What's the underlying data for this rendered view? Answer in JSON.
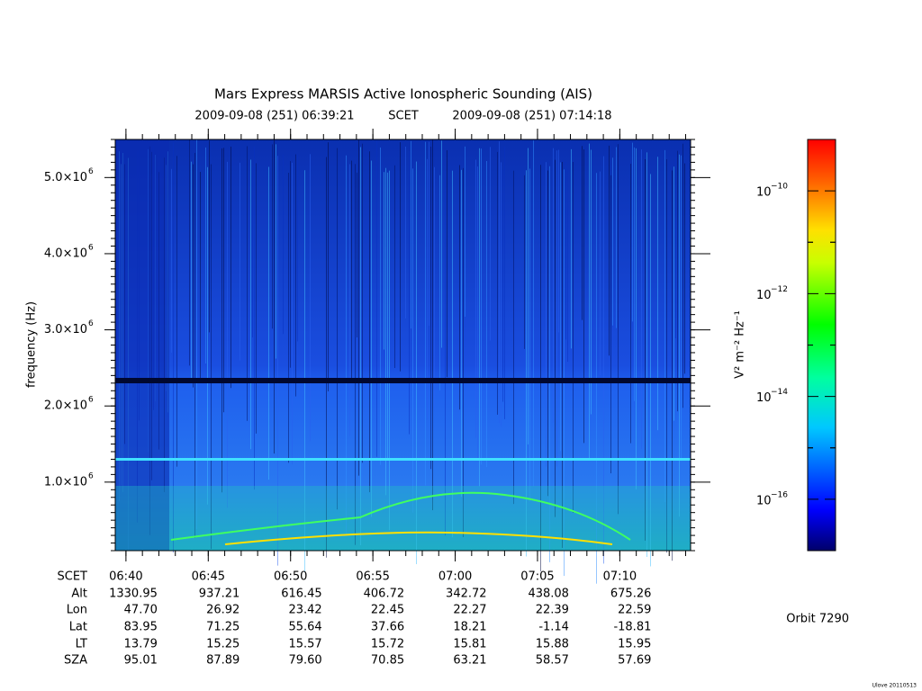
{
  "chart_data": {
    "type": "spectrogram",
    "title": "Mars Express MARSIS Active Ionospheric Sounding (AIS)",
    "time_range": {
      "start": "2009-09-08 (251) 06:39:21",
      "label": "SCET",
      "end": "2009-09-08 (251) 07:14:18"
    },
    "y_label": "frequency (Hz)",
    "ylim": [
      100000,
      5500000
    ],
    "yticks": [
      {
        "value": 1000000,
        "mantissa": "1.0×10",
        "exponent": "6"
      },
      {
        "value": 2000000,
        "mantissa": "2.0×10",
        "exponent": "6"
      },
      {
        "value": 3000000,
        "mantissa": "3.0×10",
        "exponent": "6"
      },
      {
        "value": 4000000,
        "mantissa": "4.0×10",
        "exponent": "6"
      },
      {
        "value": 5000000,
        "mantissa": "5.0×10",
        "exponent": "6"
      }
    ],
    "colorbar": {
      "label": "V² m⁻² Hz⁻¹",
      "log_scale": true,
      "lim": [
        1e-17,
        1e-09
      ],
      "ticks": [
        {
          "value": 1e-10,
          "base": "10",
          "exponent": "−10"
        },
        {
          "value": 1e-12,
          "base": "10",
          "exponent": "−12"
        },
        {
          "value": 1e-14,
          "base": "10",
          "exponent": "−14"
        },
        {
          "value": 1e-16,
          "base": "10",
          "exponent": "−16"
        }
      ]
    },
    "ephemeris": {
      "rows": [
        {
          "label": "SCET",
          "values": [
            "06:40",
            "06:45",
            "06:50",
            "06:55",
            "07:00",
            "07:05",
            "07:10"
          ]
        },
        {
          "label": "Alt",
          "values": [
            "1330.95",
            "937.21",
            "616.45",
            "406.72",
            "342.72",
            "438.08",
            "675.26"
          ]
        },
        {
          "label": "Lon",
          "values": [
            "47.70",
            "26.92",
            "23.42",
            "22.45",
            "22.27",
            "22.39",
            "22.59"
          ]
        },
        {
          "label": "Lat",
          "values": [
            "83.95",
            "71.25",
            "55.64",
            "37.66",
            "18.21",
            "-1.14",
            "-18.81"
          ]
        },
        {
          "label": "LT",
          "values": [
            "13.79",
            "15.25",
            "15.57",
            "15.72",
            "15.81",
            "15.88",
            "15.95"
          ]
        },
        {
          "label": "SZA",
          "values": [
            "95.01",
            "87.89",
            "79.60",
            "70.85",
            "63.21",
            "58.57",
            "57.69"
          ]
        }
      ]
    },
    "orbit": "Orbit 7290",
    "footer": "Ulove 20110513"
  }
}
